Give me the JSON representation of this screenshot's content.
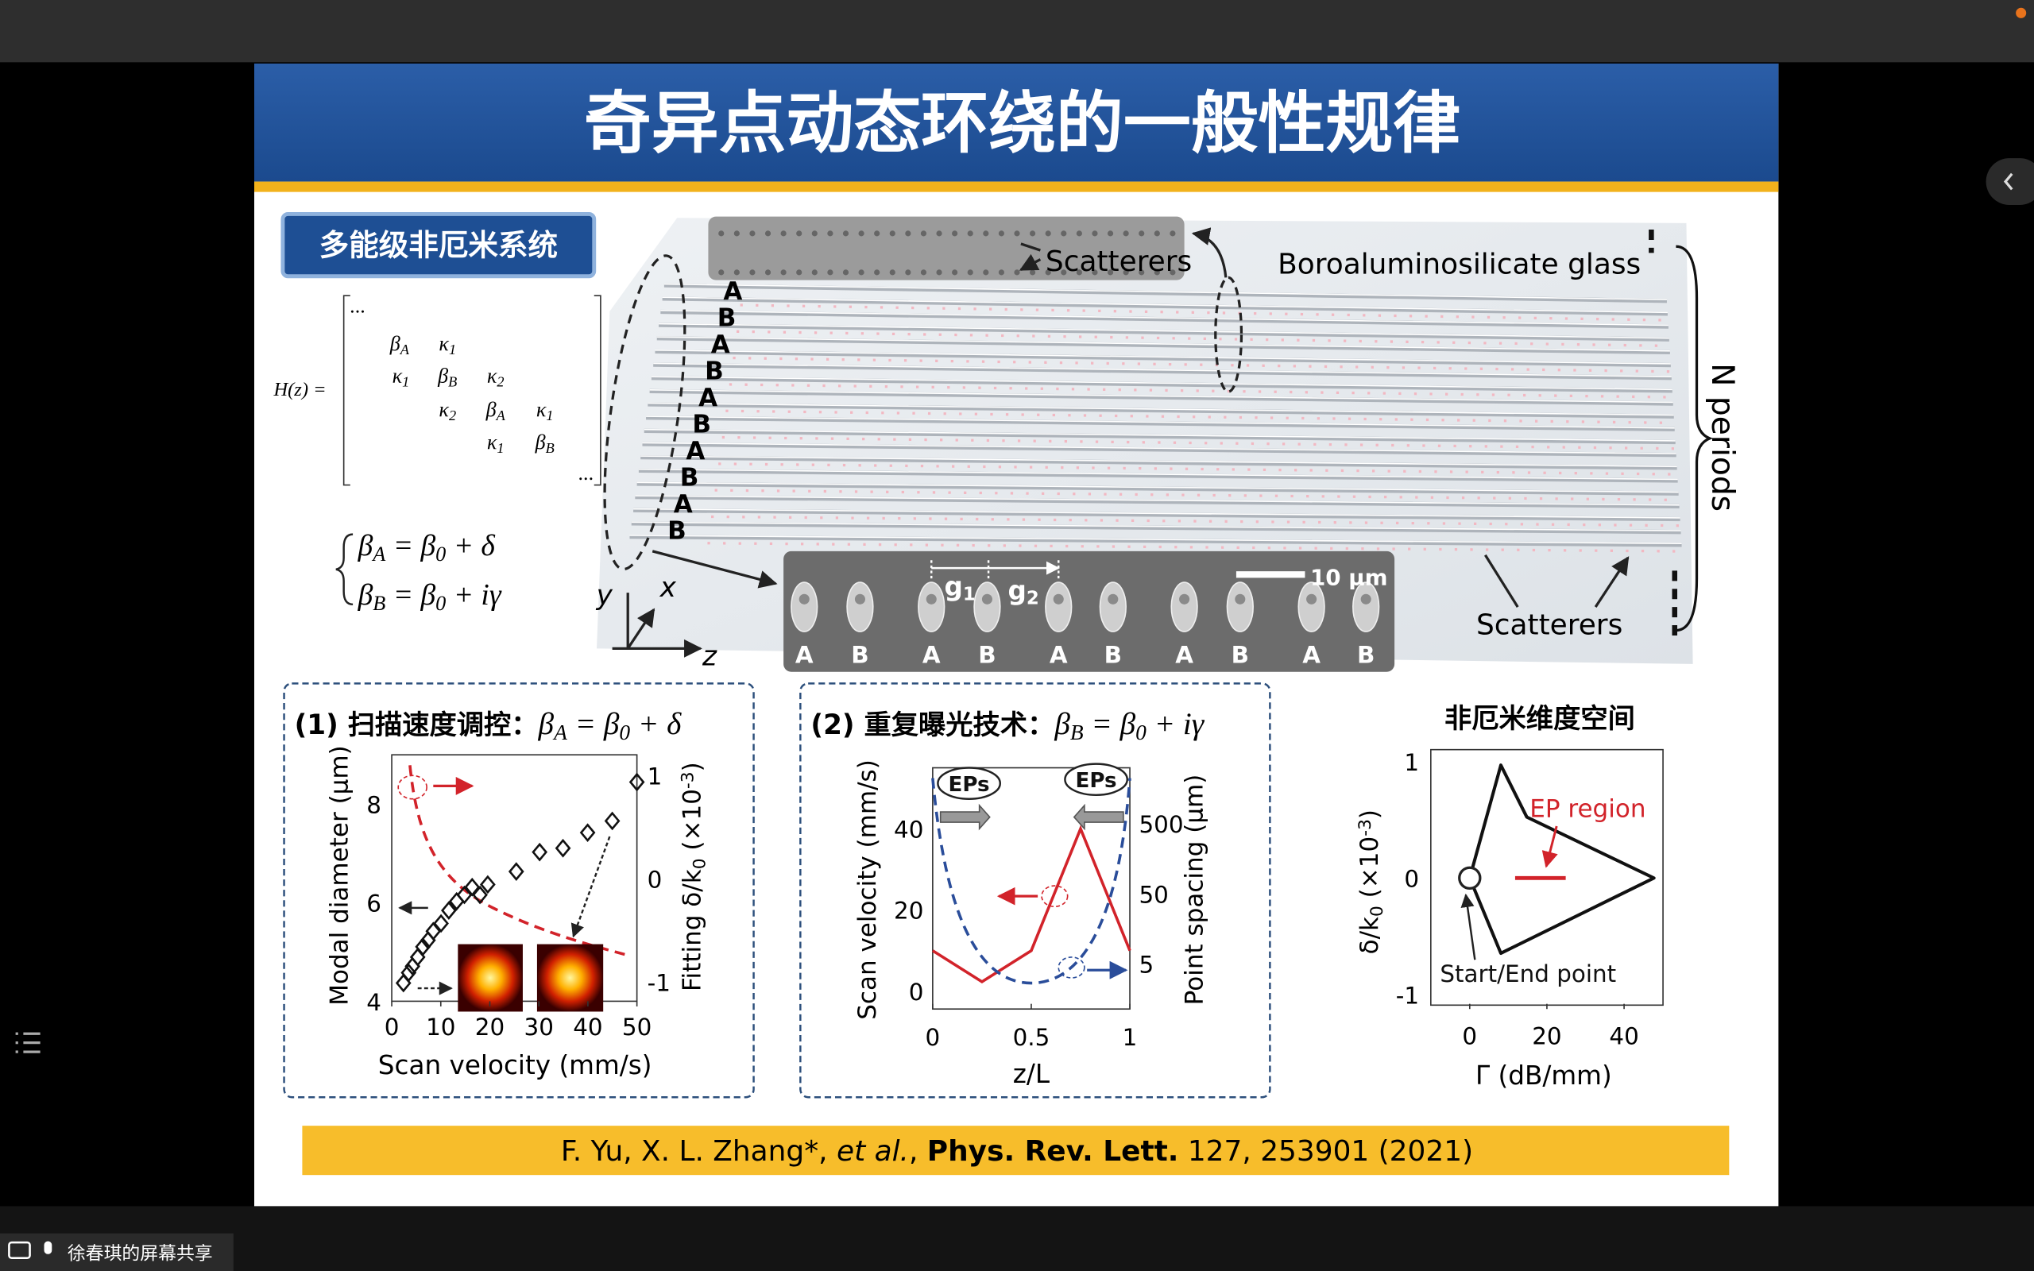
{
  "screen_share": {
    "presenter_label": "徐春琪的屏幕共享"
  },
  "slide": {
    "title": "奇异点动态环绕的一般性规律",
    "section_badge": "多能级非厄米系统",
    "hamiltonian": {
      "lhs": "H(z) =",
      "entries": [
        [
          {
            "t": "..."
          }
        ],
        [
          {
            "t": "β"
          },
          {
            "t": "A",
            "s": "sub"
          }
        ],
        [
          {
            "t": "κ"
          },
          {
            "t": "1",
            "s": "sub"
          }
        ],
        [
          {
            "t": "κ"
          },
          {
            "t": "1",
            "s": "sub"
          }
        ],
        [
          {
            "t": "β"
          },
          {
            "t": "B",
            "s": "sub"
          }
        ],
        [
          {
            "t": "κ"
          },
          {
            "t": "2",
            "s": "sub"
          }
        ],
        [
          {
            "t": "κ"
          },
          {
            "t": "2",
            "s": "sub"
          }
        ],
        [
          {
            "t": "β"
          },
          {
            "t": "A",
            "s": "sub"
          }
        ],
        [
          {
            "t": "κ"
          },
          {
            "t": "1",
            "s": "sub"
          }
        ],
        [
          {
            "t": "κ"
          },
          {
            "t": "1",
            "s": "sub"
          }
        ],
        [
          {
            "t": "β"
          },
          {
            "t": "B",
            "s": "sub"
          }
        ],
        [
          {
            "t": "..."
          }
        ]
      ]
    },
    "equations": [
      [
        {
          "t": "β"
        },
        {
          "t": "A",
          "s": "sub"
        },
        {
          "t": " = β"
        },
        {
          "t": "0",
          "s": "sub"
        },
        {
          "t": " + δ"
        }
      ],
      [
        {
          "t": "β"
        },
        {
          "t": "B",
          "s": "sub"
        },
        {
          "t": " = β"
        },
        {
          "t": "0",
          "s": "sub"
        },
        {
          "t": " + iγ"
        }
      ]
    ],
    "device": {
      "top_scatterers": "Scatterers",
      "glass": "Boroaluminosilicate glass",
      "periods": "N periods",
      "waveguide_labels": [
        "A",
        "B",
        "A",
        "B",
        "A",
        "B",
        "A",
        "B",
        "A",
        "B"
      ],
      "axes": [
        "y",
        "x",
        "z"
      ],
      "gap_labels": [
        [
          {
            "t": "g"
          },
          {
            "t": "1",
            "s": "sub"
          }
        ],
        [
          {
            "t": "g"
          },
          {
            "t": "2",
            "s": "sub"
          }
        ]
      ],
      "scale_bar": "10 μm",
      "sem_labels": [
        "A",
        "B",
        "A",
        "B",
        "A",
        "B",
        "A",
        "B",
        "A",
        "B"
      ],
      "bottom_scatterers": "Scatterers"
    },
    "panels": [
      {
        "heading": "(1) 扫描速度调控：",
        "equation": [
          {
            "t": "β"
          },
          {
            "t": "A",
            "s": "sub"
          },
          {
            "t": " = β"
          },
          {
            "t": "0",
            "s": "sub"
          },
          {
            "t": " + δ"
          }
        ],
        "x_label": [
          {
            "t": "Scan velocity (mm/s)"
          }
        ],
        "y_label": [
          {
            "t": "Modal diameter (μm)"
          }
        ],
        "y2_label": [
          {
            "t": "Fitting δ/k"
          },
          {
            "t": "0",
            "s": "sub"
          },
          {
            "t": " (×10"
          },
          {
            "t": "-3",
            "s": "sup"
          },
          {
            "t": ")"
          }
        ],
        "xticks": [
          0,
          10,
          20,
          30,
          40,
          50
        ],
        "yticks": [
          4,
          6,
          8
        ],
        "y2ticks": [
          -1,
          0,
          1
        ]
      },
      {
        "heading": "(2) 重复曝光技术：",
        "equation": [
          {
            "t": "β"
          },
          {
            "t": "B",
            "s": "sub"
          },
          {
            "t": " = β"
          },
          {
            "t": "0",
            "s": "sub"
          },
          {
            "t": " + iγ"
          }
        ],
        "x_label": [
          {
            "t": "z/L"
          }
        ],
        "y_label": [
          {
            "t": "Scan velocity (mm/s)"
          }
        ],
        "y2_label": [
          {
            "t": "Point spacing (μm)"
          }
        ],
        "xticks": [
          0,
          0.5,
          1
        ],
        "yticks": [
          0,
          20,
          40
        ],
        "y2ticks": [
          5,
          50,
          500
        ],
        "y2_log": true,
        "annotations": [
          "EPs",
          "EPs"
        ]
      },
      {
        "heading": "非厄米维度空间",
        "x_label": [
          {
            "t": "Γ (dB/mm)"
          }
        ],
        "y_label": [
          {
            "t": "δ/k"
          },
          {
            "t": "0",
            "s": "sub"
          },
          {
            "t": " (×10"
          },
          {
            "t": "-3",
            "s": "sup"
          },
          {
            "t": ")"
          }
        ],
        "xticks": [
          0,
          20,
          40
        ],
        "yticks": [
          -1,
          0,
          1
        ],
        "annotations": [
          "EP region",
          "Start/End point"
        ]
      }
    ],
    "citation": [
      {
        "t": "F. Yu, X. L. Zhang*, "
      },
      {
        "t": "et al.",
        "style": "italic"
      },
      {
        "t": ", "
      },
      {
        "t": "Phys. Rev. Lett.",
        "style": "bold"
      },
      {
        "t": " 127, 253901 (2021)"
      }
    ]
  }
}
